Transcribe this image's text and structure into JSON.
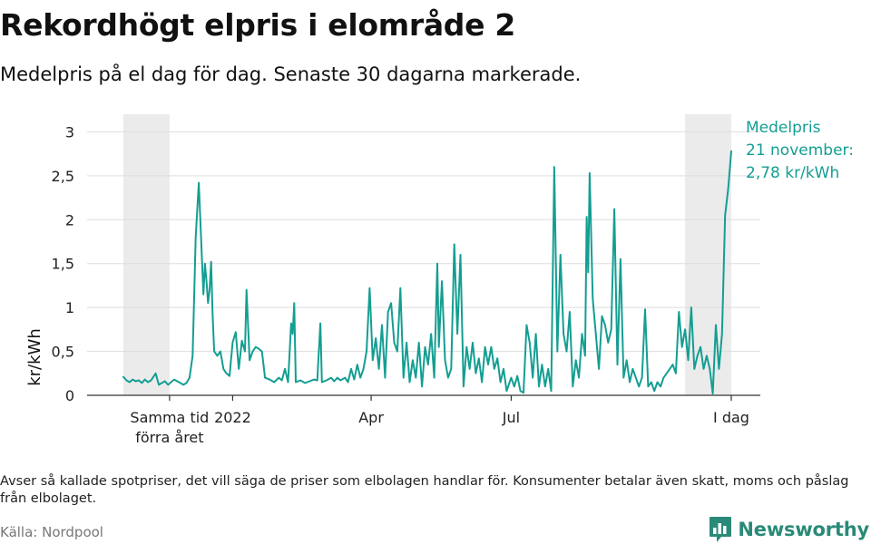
{
  "title": "Rekordhögt elpris i elområde 2",
  "subtitle": "Medelpris på el dag för dag.  Senaste 30 dagarna markerade.",
  "note": "Avser så kallade spotpriser, det vill säga de priser som elbolagen handlar för. Konsumenter betalar även skatt, moms och påslag från elbolaget.",
  "source": "Källa: Nordpool",
  "brand": "Newsworthy",
  "colors": {
    "line": "#149e92",
    "band": "#ebebeb",
    "grid": "#dddddd",
    "brand": "#2a8a78"
  },
  "chart_data": {
    "type": "line",
    "title": "Rekordhögt elpris i elområde 2",
    "subtitle": "Medelpris på el dag för dag.  Senaste 30 dagarna markerade.",
    "ylabel": "kr/kWh",
    "xlabel": "",
    "ylim": [
      0,
      3.2
    ],
    "yticks": [
      {
        "value": 0,
        "label": "0"
      },
      {
        "value": 0.5,
        "label": "0,5"
      },
      {
        "value": 1,
        "label": "1"
      },
      {
        "value": 1.5,
        "label": "1,5"
      },
      {
        "value": 2,
        "label": "2"
      },
      {
        "value": 2.5,
        "label": "2,5"
      },
      {
        "value": 3,
        "label": "3"
      }
    ],
    "x_start": "2021-10-22",
    "x_end": "2022-11-21",
    "xticks": [
      {
        "date": "2021-11-21",
        "label": [
          "Samma tid",
          "förra året"
        ]
      },
      {
        "date": "2022-01-01",
        "label": [
          "2022"
        ]
      },
      {
        "date": "2022-04-01",
        "label": [
          "Apr"
        ]
      },
      {
        "date": "2022-07-01",
        "label": [
          "Jul"
        ]
      },
      {
        "date": "2022-11-21",
        "label": [
          "I dag"
        ]
      }
    ],
    "bands": [
      {
        "start": "2021-10-22",
        "end": "2021-11-21"
      },
      {
        "start": "2022-10-22",
        "end": "2022-11-21"
      }
    ],
    "annotation": {
      "lines": [
        "Medelpris",
        "21 november:",
        "2,78 kr/kWh"
      ],
      "date": "2022-11-21",
      "value": 2.78
    },
    "grid": true,
    "legend": "none",
    "series": [
      {
        "points": [
          [
            "2021-10-22",
            0.21
          ],
          [
            "2021-10-24",
            0.17
          ],
          [
            "2021-10-26",
            0.15
          ],
          [
            "2021-10-28",
            0.18
          ],
          [
            "2021-10-30",
            0.16
          ],
          [
            "2021-11-01",
            0.17
          ],
          [
            "2021-11-03",
            0.14
          ],
          [
            "2021-11-05",
            0.18
          ],
          [
            "2021-11-07",
            0.15
          ],
          [
            "2021-11-09",
            0.17
          ],
          [
            "2021-11-12",
            0.25
          ],
          [
            "2021-11-14",
            0.12
          ],
          [
            "2021-11-16",
            0.14
          ],
          [
            "2021-11-18",
            0.16
          ],
          [
            "2021-11-20",
            0.12
          ],
          [
            "2021-11-22",
            0.15
          ],
          [
            "2021-11-24",
            0.18
          ],
          [
            "2021-11-26",
            0.16
          ],
          [
            "2021-11-28",
            0.14
          ],
          [
            "2021-11-30",
            0.12
          ],
          [
            "2021-12-02",
            0.14
          ],
          [
            "2021-12-04",
            0.2
          ],
          [
            "2021-12-06",
            0.45
          ],
          [
            "2021-12-08",
            1.8
          ],
          [
            "2021-12-10",
            2.42
          ],
          [
            "2021-12-11",
            2.0
          ],
          [
            "2021-12-13",
            1.15
          ],
          [
            "2021-12-14",
            1.5
          ],
          [
            "2021-12-15",
            1.3
          ],
          [
            "2021-12-16",
            1.05
          ],
          [
            "2021-12-17",
            1.2
          ],
          [
            "2021-12-18",
            1.52
          ],
          [
            "2021-12-19",
            0.9
          ],
          [
            "2021-12-20",
            0.5
          ],
          [
            "2021-12-22",
            0.45
          ],
          [
            "2021-12-24",
            0.5
          ],
          [
            "2021-12-26",
            0.3
          ],
          [
            "2021-12-28",
            0.25
          ],
          [
            "2021-12-30",
            0.22
          ],
          [
            "2022-01-01",
            0.6
          ],
          [
            "2022-01-03",
            0.72
          ],
          [
            "2022-01-05",
            0.3
          ],
          [
            "2022-01-07",
            0.62
          ],
          [
            "2022-01-09",
            0.5
          ],
          [
            "2022-01-10",
            1.2
          ],
          [
            "2022-01-12",
            0.4
          ],
          [
            "2022-01-14",
            0.5
          ],
          [
            "2022-01-16",
            0.55
          ],
          [
            "2022-01-18",
            0.53
          ],
          [
            "2022-01-20",
            0.5
          ],
          [
            "2022-01-22",
            0.2
          ],
          [
            "2022-01-25",
            0.18
          ],
          [
            "2022-01-28",
            0.15
          ],
          [
            "2022-01-31",
            0.2
          ],
          [
            "2022-02-02",
            0.17
          ],
          [
            "2022-02-04",
            0.3
          ],
          [
            "2022-02-06",
            0.15
          ],
          [
            "2022-02-08",
            0.82
          ],
          [
            "2022-02-09",
            0.7
          ],
          [
            "2022-02-10",
            1.05
          ],
          [
            "2022-02-11",
            0.15
          ],
          [
            "2022-02-14",
            0.17
          ],
          [
            "2022-02-17",
            0.14
          ],
          [
            "2022-02-20",
            0.16
          ],
          [
            "2022-02-23",
            0.18
          ],
          [
            "2022-02-25",
            0.17
          ],
          [
            "2022-02-27",
            0.82
          ],
          [
            "2022-02-28",
            0.15
          ],
          [
            "2022-03-03",
            0.17
          ],
          [
            "2022-03-06",
            0.2
          ],
          [
            "2022-03-08",
            0.16
          ],
          [
            "2022-03-10",
            0.2
          ],
          [
            "2022-03-12",
            0.17
          ],
          [
            "2022-03-15",
            0.2
          ],
          [
            "2022-03-17",
            0.15
          ],
          [
            "2022-03-19",
            0.3
          ],
          [
            "2022-03-21",
            0.18
          ],
          [
            "2022-03-23",
            0.35
          ],
          [
            "2022-03-25",
            0.2
          ],
          [
            "2022-03-27",
            0.3
          ],
          [
            "2022-03-29",
            0.5
          ],
          [
            "2022-03-31",
            1.22
          ],
          [
            "2022-04-02",
            0.4
          ],
          [
            "2022-04-04",
            0.65
          ],
          [
            "2022-04-06",
            0.3
          ],
          [
            "2022-04-08",
            0.8
          ],
          [
            "2022-04-10",
            0.2
          ],
          [
            "2022-04-12",
            0.95
          ],
          [
            "2022-04-14",
            1.05
          ],
          [
            "2022-04-16",
            0.6
          ],
          [
            "2022-04-18",
            0.5
          ],
          [
            "2022-04-20",
            1.22
          ],
          [
            "2022-04-22",
            0.2
          ],
          [
            "2022-04-24",
            0.6
          ],
          [
            "2022-04-26",
            0.15
          ],
          [
            "2022-04-28",
            0.4
          ],
          [
            "2022-04-30",
            0.2
          ],
          [
            "2022-05-02",
            0.6
          ],
          [
            "2022-05-04",
            0.1
          ],
          [
            "2022-05-06",
            0.55
          ],
          [
            "2022-05-08",
            0.35
          ],
          [
            "2022-05-10",
            0.7
          ],
          [
            "2022-05-12",
            0.2
          ],
          [
            "2022-05-14",
            1.5
          ],
          [
            "2022-05-15",
            0.55
          ],
          [
            "2022-05-17",
            1.3
          ],
          [
            "2022-05-19",
            0.4
          ],
          [
            "2022-05-21",
            0.2
          ],
          [
            "2022-05-23",
            0.3
          ],
          [
            "2022-05-25",
            1.72
          ],
          [
            "2022-05-27",
            0.7
          ],
          [
            "2022-05-29",
            1.6
          ],
          [
            "2022-05-31",
            0.1
          ],
          [
            "2022-06-02",
            0.55
          ],
          [
            "2022-06-04",
            0.3
          ],
          [
            "2022-06-06",
            0.6
          ],
          [
            "2022-06-08",
            0.25
          ],
          [
            "2022-06-10",
            0.42
          ],
          [
            "2022-06-12",
            0.15
          ],
          [
            "2022-06-14",
            0.55
          ],
          [
            "2022-06-16",
            0.35
          ],
          [
            "2022-06-18",
            0.55
          ],
          [
            "2022-06-20",
            0.3
          ],
          [
            "2022-06-22",
            0.42
          ],
          [
            "2022-06-24",
            0.15
          ],
          [
            "2022-06-26",
            0.3
          ],
          [
            "2022-06-28",
            0.05
          ],
          [
            "2022-07-01",
            0.2
          ],
          [
            "2022-07-03",
            0.1
          ],
          [
            "2022-07-05",
            0.22
          ],
          [
            "2022-07-07",
            0.05
          ],
          [
            "2022-07-09",
            0.03
          ],
          [
            "2022-07-11",
            0.8
          ],
          [
            "2022-07-13",
            0.6
          ],
          [
            "2022-07-15",
            0.2
          ],
          [
            "2022-07-17",
            0.7
          ],
          [
            "2022-07-19",
            0.1
          ],
          [
            "2022-07-21",
            0.35
          ],
          [
            "2022-07-23",
            0.1
          ],
          [
            "2022-07-25",
            0.3
          ],
          [
            "2022-07-27",
            0.05
          ],
          [
            "2022-07-29",
            2.6
          ],
          [
            "2022-07-31",
            0.5
          ],
          [
            "2022-08-02",
            1.6
          ],
          [
            "2022-08-04",
            0.7
          ],
          [
            "2022-08-06",
            0.5
          ],
          [
            "2022-08-08",
            0.95
          ],
          [
            "2022-08-10",
            0.1
          ],
          [
            "2022-08-12",
            0.4
          ],
          [
            "2022-08-14",
            0.2
          ],
          [
            "2022-08-16",
            0.7
          ],
          [
            "2022-08-18",
            0.45
          ],
          [
            "2022-08-19",
            2.03
          ],
          [
            "2022-08-20",
            1.4
          ],
          [
            "2022-08-21",
            2.53
          ],
          [
            "2022-08-23",
            1.1
          ],
          [
            "2022-08-25",
            0.7
          ],
          [
            "2022-08-27",
            0.3
          ],
          [
            "2022-08-29",
            0.9
          ],
          [
            "2022-08-31",
            0.8
          ],
          [
            "2022-09-02",
            0.6
          ],
          [
            "2022-09-04",
            0.75
          ],
          [
            "2022-09-06",
            2.12
          ],
          [
            "2022-09-08",
            0.35
          ],
          [
            "2022-09-10",
            1.55
          ],
          [
            "2022-09-12",
            0.2
          ],
          [
            "2022-09-14",
            0.4
          ],
          [
            "2022-09-16",
            0.15
          ],
          [
            "2022-09-18",
            0.3
          ],
          [
            "2022-09-20",
            0.2
          ],
          [
            "2022-09-22",
            0.1
          ],
          [
            "2022-09-24",
            0.2
          ],
          [
            "2022-09-26",
            0.98
          ],
          [
            "2022-09-28",
            0.1
          ],
          [
            "2022-09-30",
            0.15
          ],
          [
            "2022-10-02",
            0.05
          ],
          [
            "2022-10-04",
            0.15
          ],
          [
            "2022-10-06",
            0.1
          ],
          [
            "2022-10-08",
            0.2
          ],
          [
            "2022-10-10",
            0.25
          ],
          [
            "2022-10-12",
            0.3
          ],
          [
            "2022-10-14",
            0.35
          ],
          [
            "2022-10-16",
            0.25
          ],
          [
            "2022-10-18",
            0.95
          ],
          [
            "2022-10-20",
            0.55
          ],
          [
            "2022-10-22",
            0.75
          ],
          [
            "2022-10-24",
            0.4
          ],
          [
            "2022-10-26",
            1.0
          ],
          [
            "2022-10-28",
            0.3
          ],
          [
            "2022-10-30",
            0.45
          ],
          [
            "2022-11-01",
            0.55
          ],
          [
            "2022-11-03",
            0.3
          ],
          [
            "2022-11-05",
            0.45
          ],
          [
            "2022-11-07",
            0.3
          ],
          [
            "2022-11-09",
            0.02
          ],
          [
            "2022-11-11",
            0.8
          ],
          [
            "2022-11-13",
            0.3
          ],
          [
            "2022-11-15",
            0.7
          ],
          [
            "2022-11-17",
            2.05
          ],
          [
            "2022-11-19",
            2.35
          ],
          [
            "2022-11-21",
            2.78
          ]
        ]
      }
    ]
  }
}
